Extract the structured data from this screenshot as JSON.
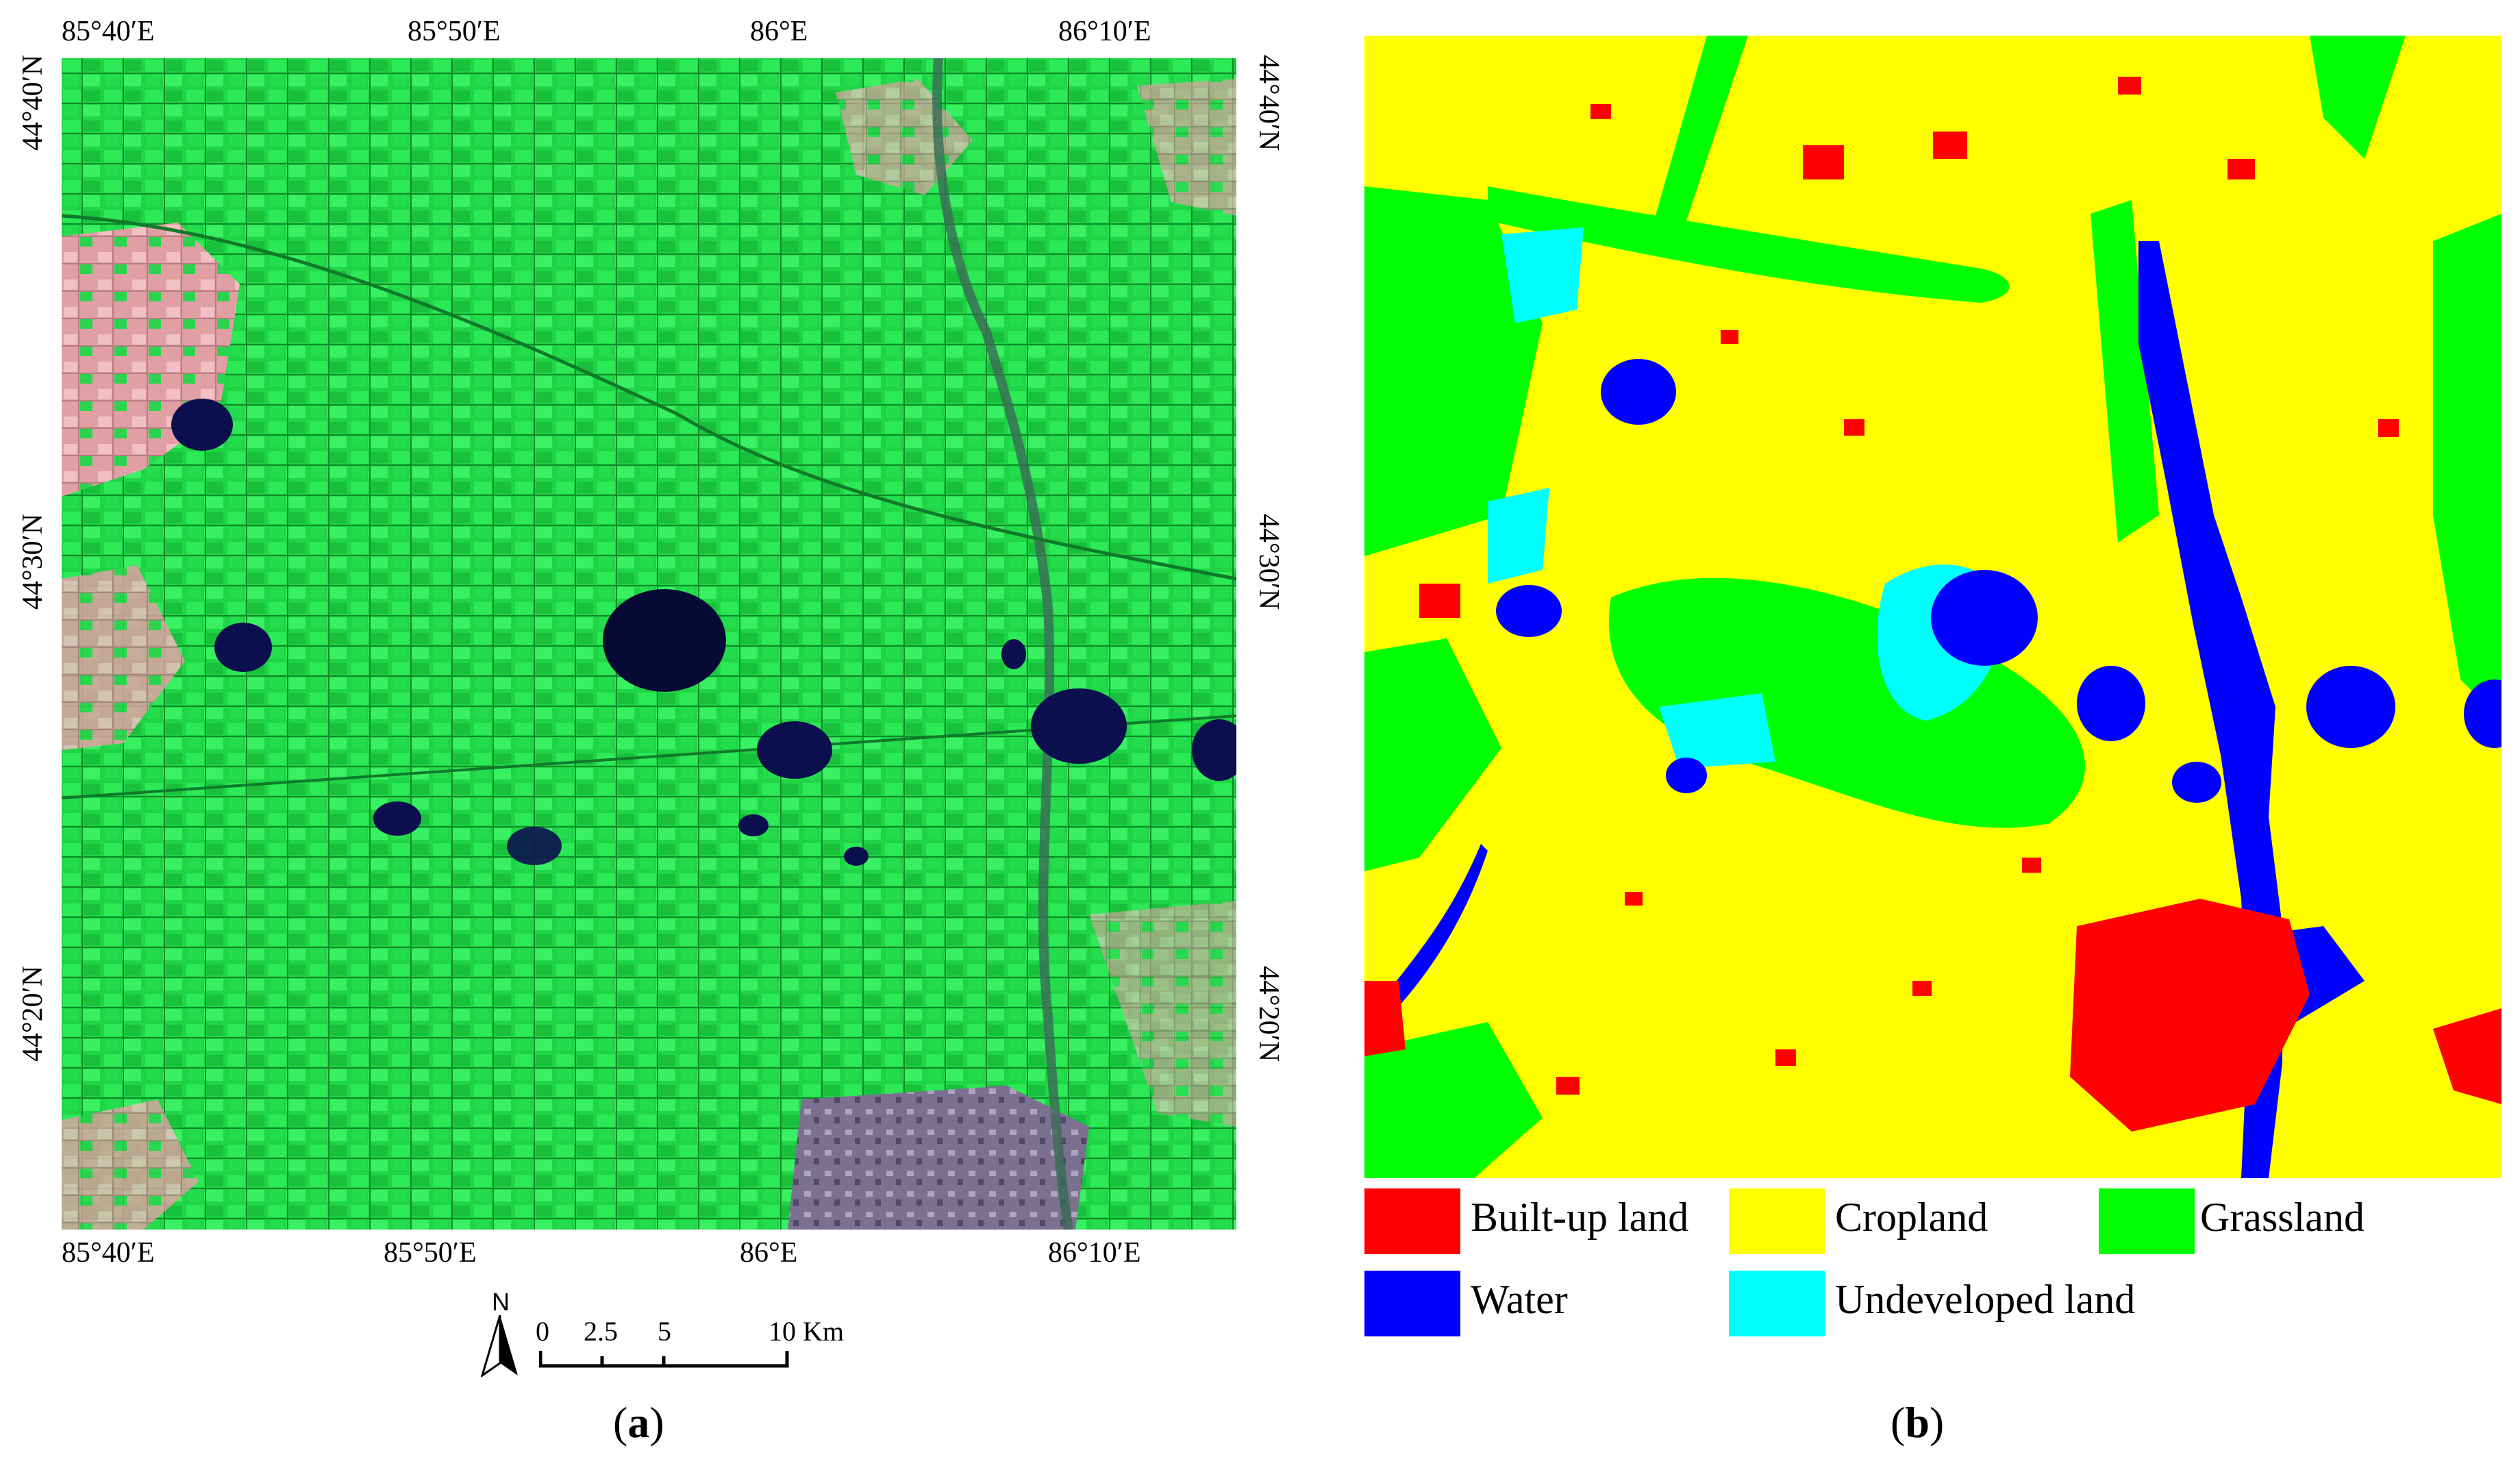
{
  "panel_a": {
    "label_open": "(",
    "label_letter": "a",
    "label_close": ")",
    "top_ticks": [
      "85°40′E",
      "85°50′E",
      "86°E",
      "86°10′E"
    ],
    "bottom_ticks": [
      "85°40′E",
      "85°50′E",
      "86°E",
      "86°10′E"
    ],
    "left_ticks": [
      "44°40′N",
      "44°30′N",
      "44°20′N"
    ],
    "right_ticks": [
      "44°40′N",
      "44°30′N",
      "44°20′N"
    ],
    "north_arrow": "N",
    "scale_bar": {
      "labels": [
        "0",
        "2.5",
        "5",
        "10 Km"
      ]
    },
    "colors": {
      "vegetation": "#22e04a",
      "bare": "#e6a6a8",
      "water": "#0b0f4e",
      "urban": "#8a7a9a"
    }
  },
  "panel_b": {
    "label_open": "(",
    "label_letter": "b",
    "label_close": ")",
    "legend": [
      {
        "name": "Built-up land",
        "color": "#ff0000"
      },
      {
        "name": "Cropland",
        "color": "#ffff00"
      },
      {
        "name": "Grassland",
        "color": "#00ff00"
      },
      {
        "name": "Water",
        "color": "#0000ff"
      },
      {
        "name": "Undeveloped land",
        "color": "#00ffff"
      }
    ]
  }
}
